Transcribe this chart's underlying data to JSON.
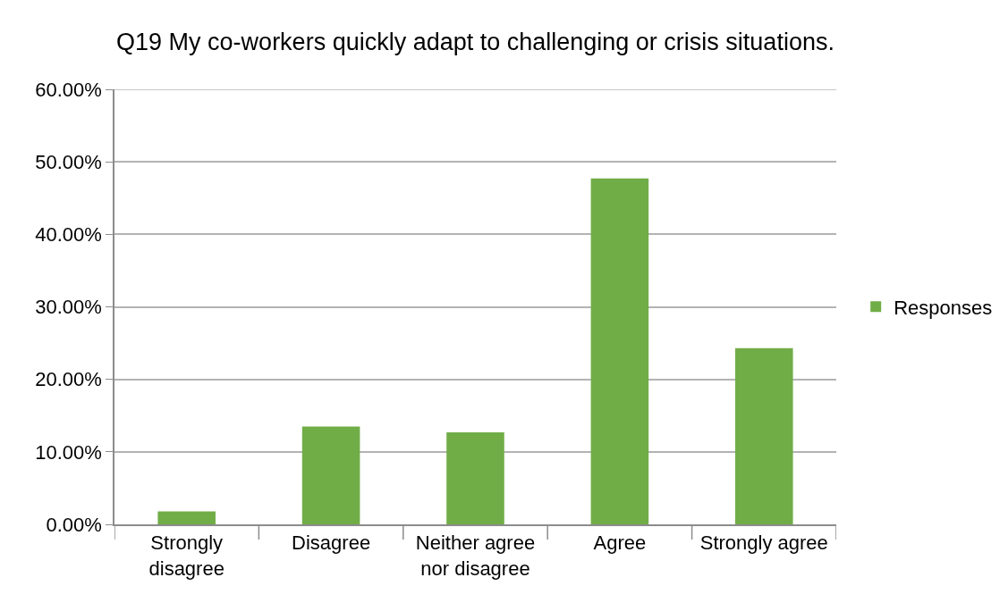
{
  "chart_data": {
    "type": "bar",
    "title": "Q19 My co-workers quickly adapt to challenging or crisis situations.",
    "categories": [
      "Strongly disagree",
      "Disagree",
      "Neither agree nor disagree",
      "Agree",
      "Strongly agree"
    ],
    "series": [
      {
        "name": "Responses",
        "color": "#70ad47",
        "values": [
          1.8,
          13.5,
          12.7,
          47.7,
          24.3
        ]
      }
    ],
    "ylim": [
      0,
      60
    ],
    "yticks": [
      {
        "value": 0,
        "label": "0.00%"
      },
      {
        "value": 10,
        "label": "10.00%"
      },
      {
        "value": 20,
        "label": "20.00%"
      },
      {
        "value": 30,
        "label": "30.00%"
      },
      {
        "value": 40,
        "label": "40.00%"
      },
      {
        "value": 50,
        "label": "50.00%"
      },
      {
        "value": 60,
        "label": "60.00%"
      }
    ],
    "grid": "y",
    "legend": "right"
  }
}
